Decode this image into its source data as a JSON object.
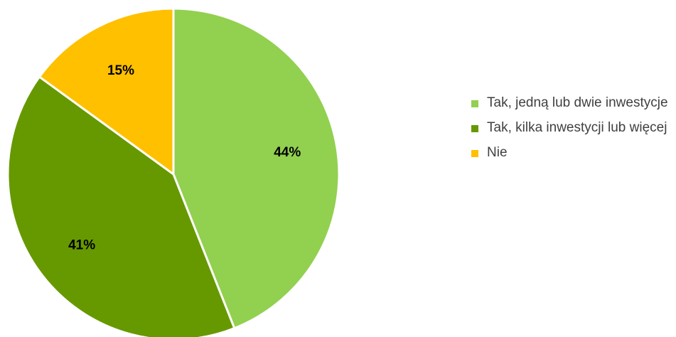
{
  "chart_data": {
    "type": "pie",
    "title": "",
    "legend_position": "right",
    "categories": [
      "Tak, jedną lub dwie inwestycje",
      "Tak, kilka inwestycji lub więcej",
      "Nie"
    ],
    "values": [
      44,
      41,
      15
    ],
    "data_labels": [
      "44%",
      "41%",
      "15%"
    ],
    "colors": [
      "#92d050",
      "#669900",
      "#ffc000"
    ]
  },
  "legend": {
    "items": [
      {
        "label": "Tak, jedną lub dwie inwestycje",
        "color": "#92d050"
      },
      {
        "label": "Tak, kilka inwestycji lub więcej",
        "color": "#669900"
      },
      {
        "label": "Nie",
        "color": "#ffc000"
      }
    ]
  }
}
